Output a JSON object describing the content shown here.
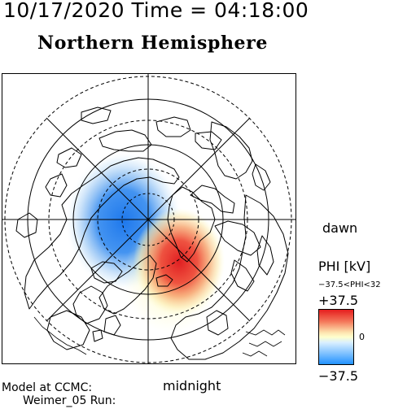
{
  "header": {
    "datetime": "10/17/2020 Time = 04:18:00",
    "title": "Northern Hemisphere"
  },
  "map": {
    "projection": "polar-stereographic",
    "center": "north-pole",
    "land_outline": "coastline-black",
    "grid": {
      "latitude_circles": [
        "solid",
        "dashed",
        "solid",
        "dashed",
        "solid",
        "dashed"
      ],
      "meridian_lines": 8
    },
    "potential_cells": [
      {
        "sign": "negative",
        "color": "#2f7ee6",
        "side": "dusk"
      },
      {
        "sign": "positive",
        "color": "#e4262a",
        "side": "dawn"
      }
    ]
  },
  "orientation": {
    "dawn": "dawn",
    "midnight": "midnight"
  },
  "legend": {
    "title": "PHI [kV]",
    "range": "−37.5<PHI<32",
    "max": "+37.5",
    "zero": "0",
    "min": "−37.5",
    "colors": {
      "max": "#e41a1c",
      "mid": "#ffffcc",
      "min": "#1e90ff"
    }
  },
  "footer": {
    "model": "Model at CCMC:",
    "run": "Weimer_05 Run:"
  }
}
